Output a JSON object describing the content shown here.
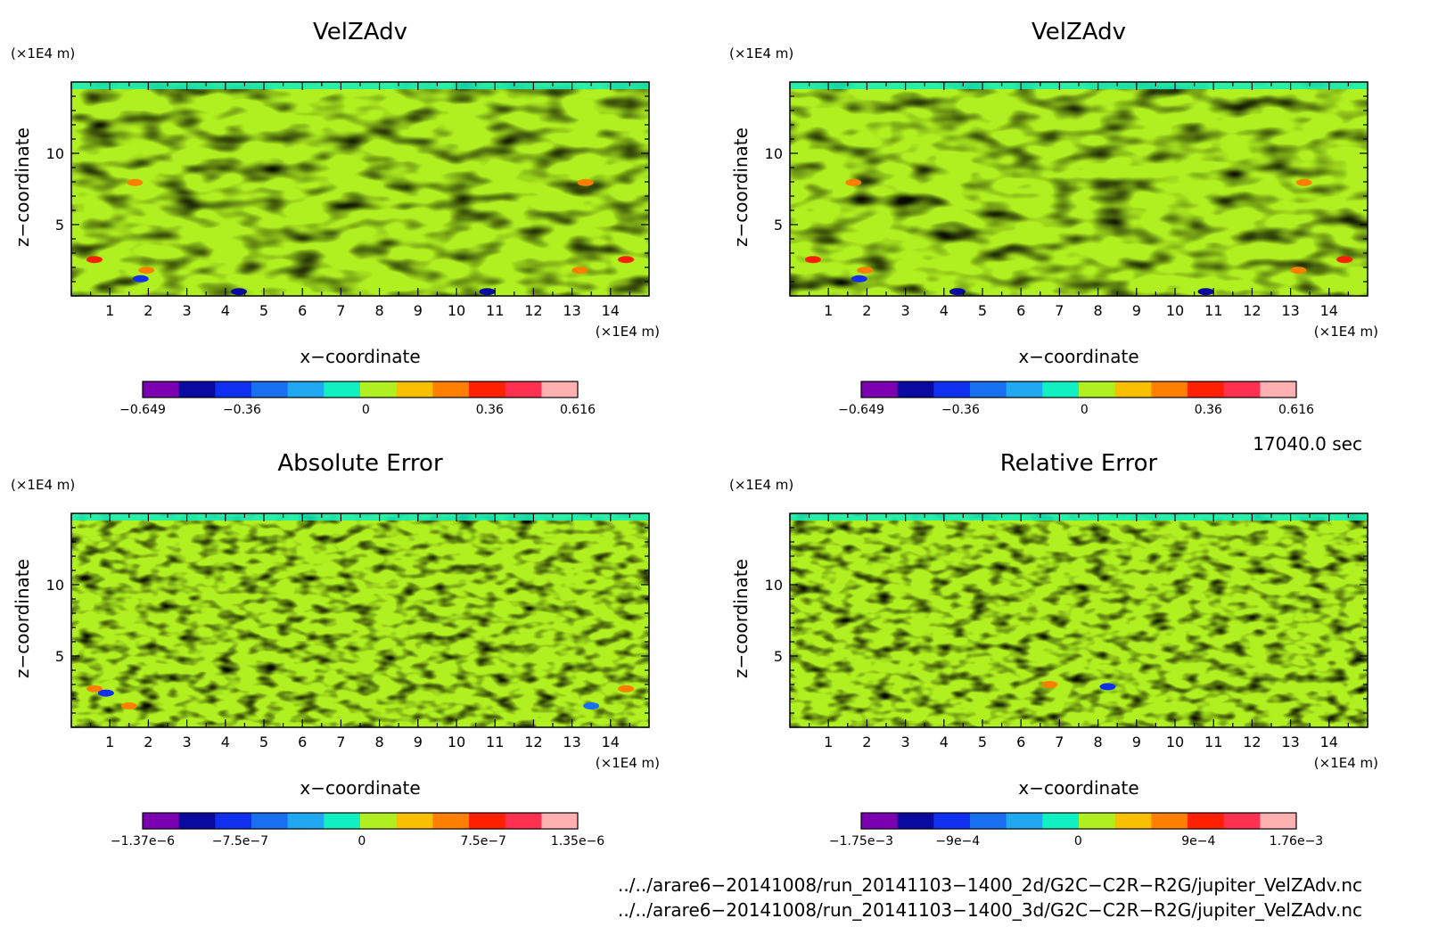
{
  "panels": [
    {
      "title": "VelZAdv",
      "x_unit": "(×1E4 m)",
      "z_unit": "(×1E4 m)",
      "xlabel": "x−coordinate",
      "ylabel": "z−coordinate",
      "colorbar_labels": [
        "−0.649",
        "−0.36",
        "0",
        "0.36",
        "0.616"
      ]
    },
    {
      "title": "VelZAdv",
      "x_unit": "(×1E4 m)",
      "z_unit": "(×1E4 m)",
      "xlabel": "x−coordinate",
      "ylabel": "z−coordinate",
      "colorbar_labels": [
        "−0.649",
        "−0.36",
        "0",
        "0.36",
        "0.616"
      ]
    },
    {
      "title": "Absolute Error",
      "x_unit": "(×1E4 m)",
      "z_unit": "(×1E4 m)",
      "xlabel": "x−coordinate",
      "ylabel": "z−coordinate",
      "colorbar_labels": [
        "−1.37e−6",
        "−7.5e−7",
        "0",
        "7.5e−7",
        "1.35e−6"
      ]
    },
    {
      "title": "Relative Error",
      "x_unit": "(×1E4 m)",
      "z_unit": "(×1E4 m)",
      "xlabel": "x−coordinate",
      "ylabel": "z−coordinate",
      "colorbar_labels": [
        "−1.75e−3",
        "−9e−4",
        "0",
        "9e−4",
        "1.76e−3"
      ]
    }
  ],
  "time_label": "17040.0 sec",
  "file_paths": [
    "../../arare6−20141008/run_20141103−1400_2d/G2C−C2R−R2G/jupiter_VelZAdv.nc",
    "../../arare6−20141008/run_20141103−1400_3d/G2C−C2R−R2G/jupiter_VelZAdv.nc"
  ],
  "chart_data": [
    {
      "type": "heatmap",
      "title": "VelZAdv",
      "xlabel": "x−coordinate",
      "ylabel": "z−coordinate",
      "x_ticks": [
        1,
        2,
        3,
        4,
        5,
        6,
        7,
        8,
        9,
        10,
        11,
        12,
        13,
        14
      ],
      "y_ticks": [
        5,
        10
      ],
      "xlim": [
        0,
        15
      ],
      "ylim": [
        0,
        15
      ],
      "colorbar": {
        "min": -0.649,
        "max": 0.616,
        "labels": [
          "−0.649",
          "−0.36",
          "0",
          "0.36",
          "0.616"
        ]
      }
    },
    {
      "type": "heatmap",
      "title": "VelZAdv",
      "xlabel": "x−coordinate",
      "ylabel": "z−coordinate",
      "x_ticks": [
        1,
        2,
        3,
        4,
        5,
        6,
        7,
        8,
        9,
        10,
        11,
        12,
        13,
        14
      ],
      "y_ticks": [
        5,
        10
      ],
      "xlim": [
        0,
        15
      ],
      "ylim": [
        0,
        15
      ],
      "colorbar": {
        "min": -0.649,
        "max": 0.616,
        "labels": [
          "−0.649",
          "−0.36",
          "0",
          "0.36",
          "0.616"
        ]
      }
    },
    {
      "type": "heatmap",
      "title": "Absolute Error",
      "xlabel": "x−coordinate",
      "ylabel": "z−coordinate",
      "x_ticks": [
        1,
        2,
        3,
        4,
        5,
        6,
        7,
        8,
        9,
        10,
        11,
        12,
        13,
        14
      ],
      "y_ticks": [
        5,
        10
      ],
      "xlim": [
        0,
        15
      ],
      "ylim": [
        0,
        15
      ],
      "colorbar": {
        "min": -1.37e-06,
        "max": 1.35e-06,
        "labels": [
          "−1.37e−6",
          "−7.5e−7",
          "0",
          "7.5e−7",
          "1.35e−6"
        ]
      }
    },
    {
      "type": "heatmap",
      "title": "Relative Error",
      "xlabel": "x−coordinate",
      "ylabel": "z−coordinate",
      "x_ticks": [
        1,
        2,
        3,
        4,
        5,
        6,
        7,
        8,
        9,
        10,
        11,
        12,
        13,
        14
      ],
      "y_ticks": [
        5,
        10
      ],
      "xlim": [
        0,
        15
      ],
      "ylim": [
        0,
        15
      ],
      "colorbar": {
        "min": -0.00175,
        "max": 0.00176,
        "labels": [
          "−1.75e−3",
          "−9e−4",
          "0",
          "9e−4",
          "1.76e−3"
        ]
      }
    }
  ],
  "colormap": [
    "#7a00b0",
    "#0a0aa0",
    "#1030f0",
    "#1870f0",
    "#20a8f0",
    "#10f0c0",
    "#b0f020",
    "#f8c000",
    "#ff8000",
    "#ff2000",
    "#ff3050",
    "#ffb0b0"
  ]
}
